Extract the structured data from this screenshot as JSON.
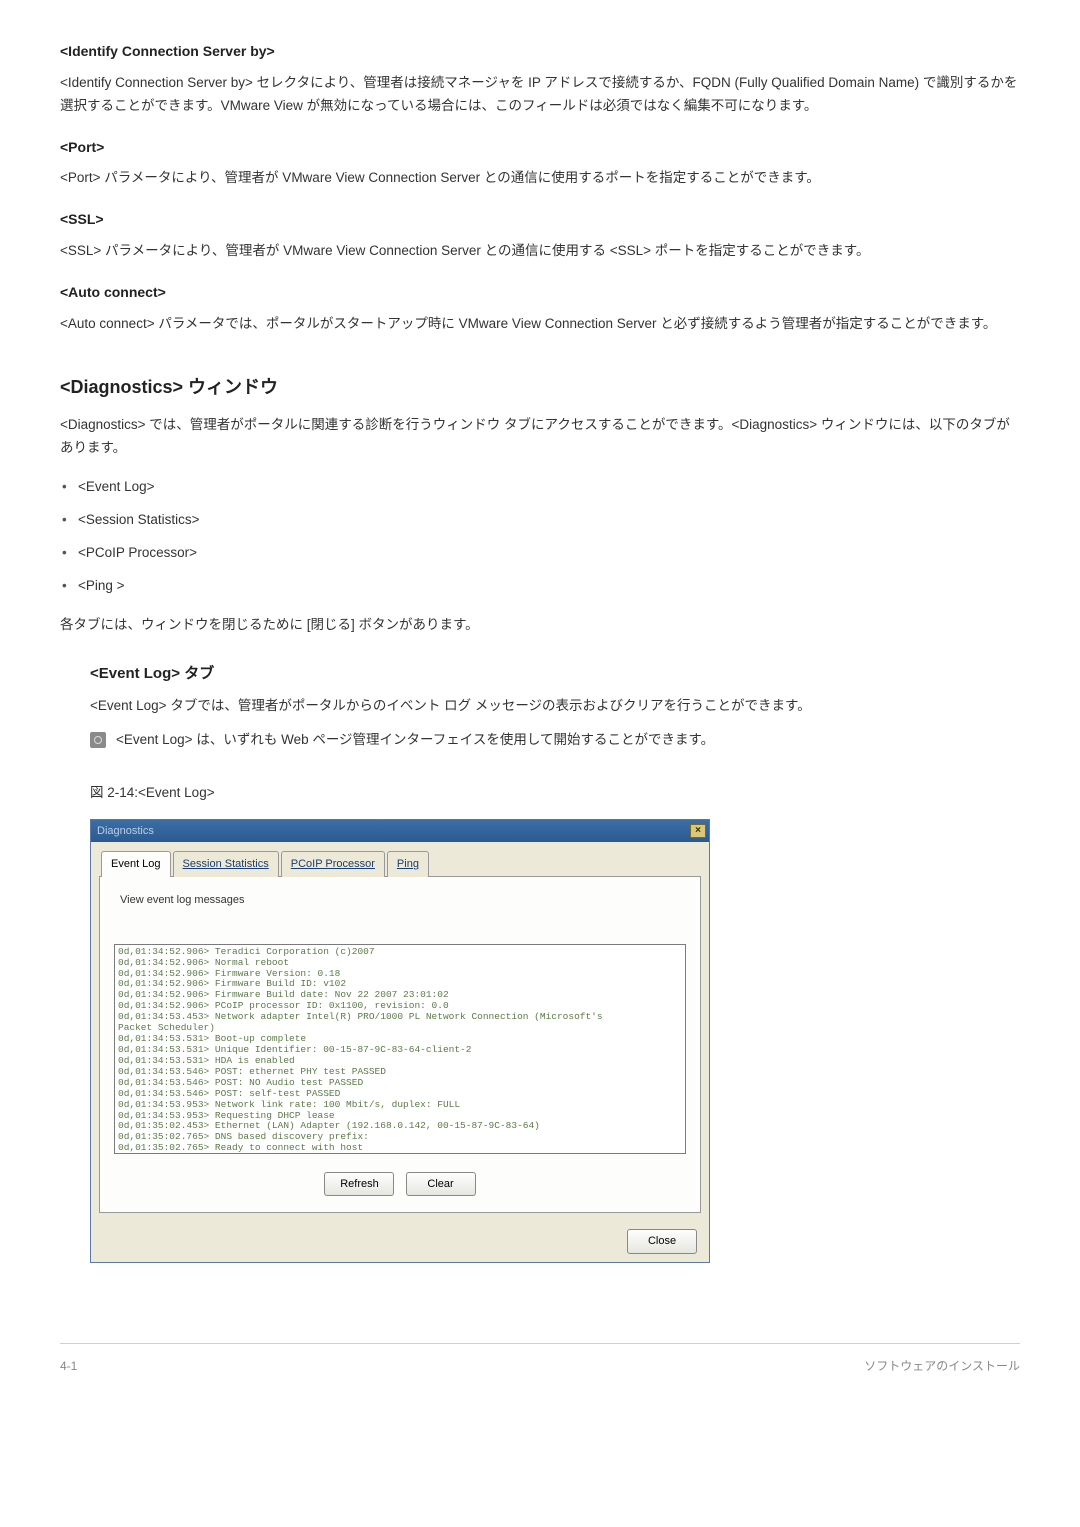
{
  "sections": {
    "identify": {
      "heading": "<Identify Connection Server by>",
      "body": "<Identify Connection Server by> セレクタにより、管理者は接続マネージャを IP アドレスで接続するか、FQDN (Fully Qualified Domain Name) で識別するかを選択することができます。VMware View が無効になっている場合には、このフィールドは必須ではなく編集不可になります。"
    },
    "port": {
      "heading": "<Port>",
      "body": "<Port> パラメータにより、管理者が VMware View Connection Server との通信に使用するポートを指定することができます。"
    },
    "ssl": {
      "heading": "<SSL>",
      "body": "<SSL> パラメータにより、管理者が VMware View Connection Server との通信に使用する <SSL> ポートを指定することができます。"
    },
    "auto": {
      "heading": "<Auto connect>",
      "body": "<Auto connect> パラメータでは、ポータルがスタートアップ時に VMware View Connection Server と必ず接続するよう管理者が指定することができます。"
    },
    "diagnostics": {
      "heading": "<Diagnostics> ウィンドウ",
      "body": "<Diagnostics> では、管理者がポータルに関連する診断を行うウィンドウ タブにアクセスすることができます。<Diagnostics> ウィンドウには、以下のタブがあります。",
      "items": [
        "<Event Log>",
        "<Session Statistics>",
        "<PCoIP Processor>",
        "<Ping >"
      ],
      "after_list": "各タブには、ウィンドウを閉じるために [閉じる] ボタンがあります。"
    },
    "eventlog": {
      "heading": "<Event Log> タブ",
      "body": "<Event Log> タブでは、管理者がポータルからのイベント ログ メッセージの表示およびクリアを行うことができます。",
      "note": "<Event Log> は、いずれも Web ページ管理インターフェイスを使用して開始することができます。",
      "caption": "図 2-14:<Event Log>"
    }
  },
  "dialog": {
    "title": "Diagnostics",
    "tabs": [
      "Event Log",
      "Session Statistics",
      "PCoIP Processor",
      "Ping"
    ],
    "panel_label": "View event log messages",
    "log_text": "0d,01:34:52.906> Teradici Corporation (c)2007\n0d,01:34:52.906> Normal reboot\n0d,01:34:52.906> Firmware Version: 0.18\n0d,01:34:52.906> Firmware Build ID: v102\n0d,01:34:52.906> Firmware Build date: Nov 22 2007 23:01:02\n0d,01:34:52.906> PCoIP processor ID: 0x1100, revision: 0.0\n0d,01:34:53.453> Network adapter Intel(R) PRO/1000 PL Network Connection (Microsoft's\nPacket Scheduler)\n0d,01:34:53.531> Boot-up complete\n0d,01:34:53.531> Unique Identifier: 00-15-87-9C-83-64-client-2\n0d,01:34:53.531> HDA is enabled\n0d,01:34:53.546> POST: ethernet PHY test PASSED\n0d,01:34:53.546> POST: NO Audio test PASSED\n0d,01:34:53.546> POST: self-test PASSED\n0d,01:34:53.953> Network link rate: 100 Mbit/s, duplex: FULL\n0d,01:34:53.953> Requesting DHCP lease\n0d,01:35:02.453> Ethernet (LAN) Adapter (192.168.0.142, 00-15-87-9C-83-64)\n0d,01:35:02.765> DNS based discovery prefix:\n0d,01:35:02.765> Ready to connect with host",
    "buttons": {
      "refresh": "Refresh",
      "clear": "Clear",
      "close": "Close"
    }
  },
  "footer": {
    "left": "4-1",
    "right": "ソフトウェアのインストール"
  }
}
